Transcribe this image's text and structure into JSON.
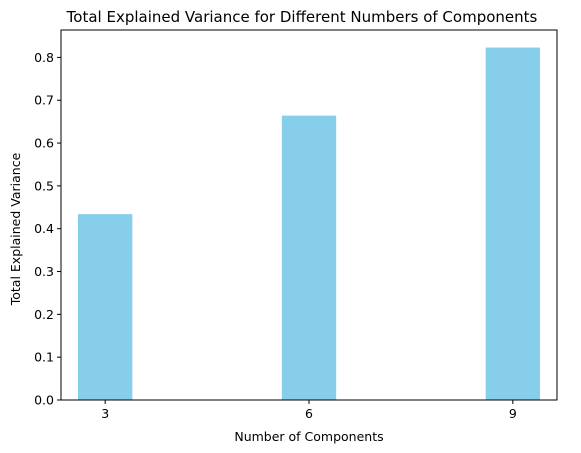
{
  "chart_data": {
    "type": "bar",
    "title": "Total Explained Variance for Different Numbers of Components",
    "xlabel": "Number of Components",
    "ylabel": "Total Explained Variance",
    "categories": [
      3,
      6,
      9
    ],
    "values": [
      0.434,
      0.664,
      0.823
    ],
    "xlim": [
      2.35,
      9.65
    ],
    "ylim": [
      0,
      0.864
    ],
    "yticks": [
      0.0,
      0.1,
      0.2,
      0.3,
      0.4,
      0.5,
      0.6,
      0.7,
      0.8
    ],
    "ytick_labels": [
      "0.0",
      "0.1",
      "0.2",
      "0.3",
      "0.4",
      "0.5",
      "0.6",
      "0.7",
      "0.8"
    ],
    "xticks": [
      3,
      6,
      9
    ],
    "xtick_labels": [
      "3",
      "6",
      "9"
    ],
    "bar_width": 0.8,
    "bar_color": "#87ceeb",
    "grid": false,
    "legend": false
  }
}
